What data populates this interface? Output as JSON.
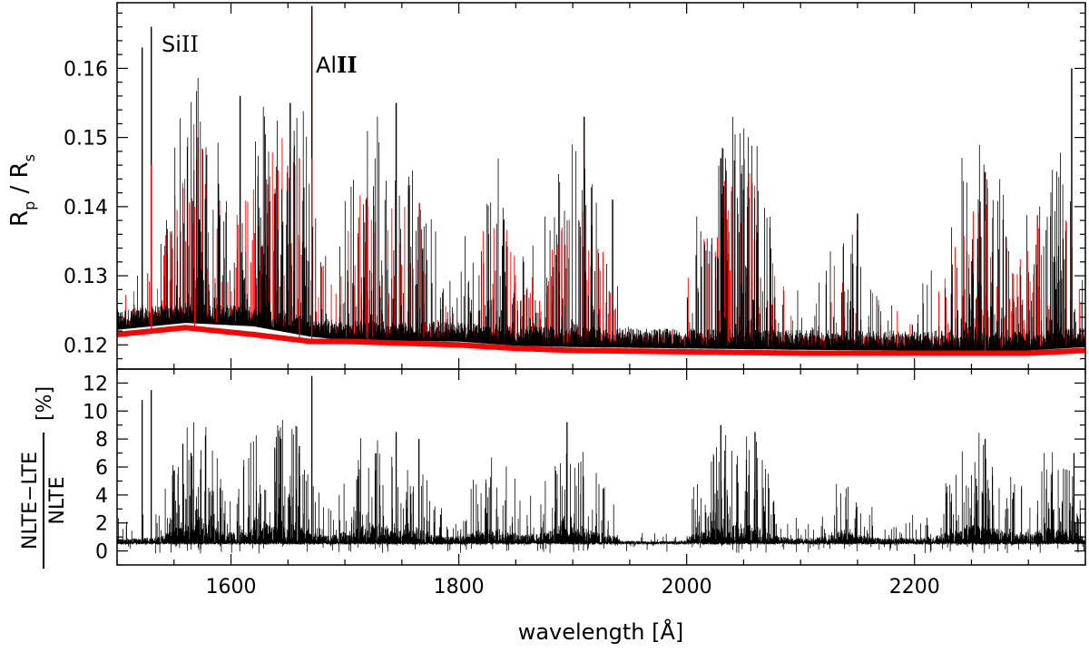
{
  "chart_data": [
    {
      "type": "line",
      "panel": "top",
      "ylabel_main": "R",
      "ylabel_sub_p": "p",
      "ylabel_slash": " / ",
      "ylabel_sub_s": "s",
      "xlim": [
        1500,
        2350
      ],
      "ylim": [
        0.1165,
        0.1695
      ],
      "x_ticks": [
        1600,
        1800,
        2000,
        2200
      ],
      "y_ticks": [
        0.12,
        0.13,
        0.14,
        0.15,
        0.16
      ],
      "y_tick_labels": [
        "0.12",
        "0.13",
        "0.14",
        "0.15",
        "0.16"
      ],
      "annotations": [
        {
          "text_main": "Si",
          "text_ion": "II",
          "x": 1530
        },
        {
          "text_main": "Al",
          "text_ion": "II",
          "x": 1671
        }
      ],
      "series": [
        {
          "color": "#000000",
          "baseline": [
            [
              1500,
              0.1225
            ],
            [
              1560,
              0.1235
            ],
            [
              1620,
              0.123
            ],
            [
              1670,
              0.1215
            ],
            [
              1700,
              0.121
            ],
            [
              1800,
              0.1208
            ],
            [
              1850,
              0.1202
            ],
            [
              1900,
              0.12
            ],
            [
              2000,
              0.1198
            ],
            [
              2100,
              0.1196
            ],
            [
              2200,
              0.1195
            ],
            [
              2300,
              0.1195
            ],
            [
              2350,
              0.12
            ]
          ],
          "peaks": [
            [
              1522,
              0.163
            ],
            [
              1530,
              0.166
            ],
            [
              1571,
              0.15
            ],
            [
              1608,
              0.156
            ],
            [
              1652,
              0.155
            ],
            [
              1671,
              0.169
            ],
            [
              1745,
              0.155
            ],
            [
              1910,
              0.153
            ],
            [
              1935,
              0.141
            ],
            [
              2030,
              0.147
            ],
            [
              2150,
              0.139
            ],
            [
              2262,
              0.145
            ],
            [
              2338,
              0.16
            ]
          ]
        },
        {
          "color": "#ff0000",
          "baseline": [
            [
              1500,
              0.1215
            ],
            [
              1560,
              0.1225
            ],
            [
              1620,
              0.1215
            ],
            [
              1670,
              0.1205
            ],
            [
              1700,
              0.1205
            ],
            [
              1800,
              0.12
            ],
            [
              1850,
              0.1195
            ],
            [
              1900,
              0.1192
            ],
            [
              2000,
              0.119
            ],
            [
              2100,
              0.1188
            ],
            [
              2200,
              0.1188
            ],
            [
              2300,
              0.1188
            ],
            [
              2350,
              0.1192
            ]
          ],
          "peaks": [
            [
              1530,
              0.146
            ],
            [
              1568,
              0.14
            ],
            [
              1660,
              0.147
            ],
            [
              1671,
              0.147
            ],
            [
              1720,
              0.14
            ],
            [
              2262,
              0.138
            ]
          ]
        }
      ]
    },
    {
      "type": "line",
      "panel": "bottom",
      "ylabel_numerator": "NLTE−LTE",
      "ylabel_denominator": "NLTE",
      "ylabel_unit": "[%]",
      "xlabel": "wavelength [Å]",
      "xlim": [
        1500,
        2350
      ],
      "ylim": [
        -1.0,
        13.0
      ],
      "x_ticks": [
        1600,
        1800,
        2000,
        2200
      ],
      "x_tick_labels": [
        "1600",
        "1800",
        "2000",
        "2200"
      ],
      "y_ticks": [
        0,
        2,
        4,
        6,
        8,
        10,
        12
      ],
      "y_tick_labels": [
        "0",
        "2",
        "4",
        "6",
        "8",
        "10",
        "12"
      ],
      "series": [
        {
          "color": "#000000",
          "peaks": [
            [
              1522,
              10.8
            ],
            [
              1530,
              11.5
            ],
            [
              1565,
              7.0
            ],
            [
              1660,
              7.5
            ],
            [
              1671,
              12.5
            ],
            [
              1745,
              8.5
            ],
            [
              1765,
              8.0
            ],
            [
              1895,
              9.2
            ],
            [
              2030,
              9.0
            ],
            [
              2060,
              8.5
            ],
            [
              2262,
              8.0
            ],
            [
              2340,
              7.0
            ]
          ]
        }
      ]
    }
  ]
}
